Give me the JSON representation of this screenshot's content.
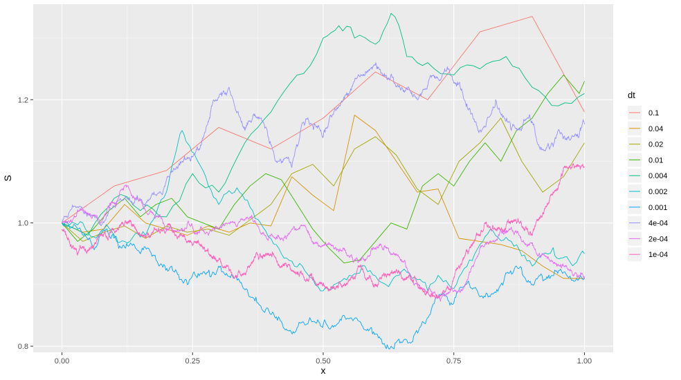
{
  "chart_data": {
    "type": "line",
    "title": "",
    "xlabel": "x",
    "ylabel": "S",
    "xlim": [
      -0.055,
      1.055
    ],
    "ylim": [
      0.79,
      1.355
    ],
    "x_ticks": [
      "0.00",
      "0.25",
      "0.50",
      "0.75",
      "1.00"
    ],
    "x_tick_values": [
      0,
      0.25,
      0.5,
      0.75,
      1.0
    ],
    "y_ticks": [
      "0.8",
      "1.0",
      "1.2"
    ],
    "y_tick_values": [
      0.8,
      1.0,
      1.2
    ],
    "grid": true,
    "legend": {
      "title": "dt",
      "placement": "right"
    },
    "series": [
      {
        "name": "0.1",
        "color": "#F8766D",
        "x": [
          0,
          0.1,
          0.2,
          0.3,
          0.4,
          0.5,
          0.6,
          0.7,
          0.8,
          0.9,
          1.0
        ],
        "y": [
          1.0,
          1.06,
          1.085,
          1.155,
          1.12,
          1.17,
          1.245,
          1.2,
          1.31,
          1.335,
          1.18
        ]
      },
      {
        "name": "0.04",
        "color": "#D89000",
        "x": [
          0,
          0.04,
          0.08,
          0.12,
          0.16,
          0.2,
          0.24,
          0.28,
          0.32,
          0.36,
          0.4,
          0.44,
          0.48,
          0.52,
          0.56,
          0.6,
          0.64,
          0.68,
          0.72,
          0.76,
          0.8,
          0.84,
          0.88,
          0.92,
          0.96,
          1.0
        ],
        "y": [
          1.0,
          0.985,
          0.99,
          1.03,
          1.0,
          0.99,
          0.98,
          0.995,
          0.985,
          1.0,
          0.995,
          1.075,
          1.045,
          1.02,
          1.175,
          1.15,
          1.1,
          1.05,
          1.055,
          0.975,
          0.97,
          0.965,
          0.955,
          0.93,
          0.91,
          0.91
        ]
      },
      {
        "name": "0.02",
        "color": "#A3A500",
        "x": [
          0,
          0.04,
          0.08,
          0.12,
          0.16,
          0.2,
          0.24,
          0.28,
          0.32,
          0.36,
          0.4,
          0.44,
          0.48,
          0.52,
          0.56,
          0.6,
          0.64,
          0.68,
          0.72,
          0.76,
          0.8,
          0.84,
          0.88,
          0.92,
          0.96,
          1.0
        ],
        "y": [
          1.0,
          0.97,
          0.985,
          0.995,
          0.975,
          0.995,
          0.985,
          0.99,
          0.98,
          1.005,
          1.03,
          1.08,
          1.095,
          1.06,
          1.12,
          1.14,
          1.11,
          1.055,
          1.03,
          1.1,
          1.13,
          1.17,
          1.1,
          1.05,
          1.075,
          1.13
        ]
      },
      {
        "name": "0.01",
        "color": "#39B600",
        "x": [
          0,
          0.03,
          0.06,
          0.09,
          0.12,
          0.15,
          0.18,
          0.21,
          0.24,
          0.27,
          0.3,
          0.33,
          0.36,
          0.39,
          0.42,
          0.45,
          0.48,
          0.51,
          0.54,
          0.57,
          0.6,
          0.63,
          0.66,
          0.69,
          0.72,
          0.75,
          0.78,
          0.81,
          0.84,
          0.87,
          0.9,
          0.93,
          0.96,
          0.99,
          1.0
        ],
        "y": [
          1.0,
          0.97,
          0.99,
          1.02,
          1.04,
          1.01,
          1.03,
          1.04,
          1.01,
          1.0,
          0.99,
          1.03,
          1.06,
          1.08,
          1.07,
          1.03,
          0.99,
          0.96,
          0.935,
          0.94,
          0.97,
          1.0,
          0.99,
          1.06,
          1.08,
          1.06,
          1.1,
          1.13,
          1.1,
          1.15,
          1.17,
          1.21,
          1.24,
          1.21,
          1.23
        ]
      },
      {
        "name": "0.004",
        "color": "#00BF7D",
        "x": [
          0,
          0.05,
          0.1,
          0.15,
          0.2,
          0.25,
          0.3,
          0.35,
          0.4,
          0.45,
          0.5,
          0.53,
          0.56,
          0.6,
          0.63,
          0.66,
          0.7,
          0.75,
          0.8,
          0.85,
          0.9,
          0.95,
          1.0
        ],
        "y": [
          1.0,
          0.98,
          1.04,
          1.02,
          1.01,
          1.08,
          1.05,
          1.13,
          1.18,
          1.24,
          1.3,
          1.32,
          1.3,
          1.29,
          1.34,
          1.27,
          1.26,
          1.24,
          1.25,
          1.27,
          1.22,
          1.19,
          1.21
        ]
      },
      {
        "name": "0.002",
        "color": "#00BFC4",
        "x": [
          0,
          0.04,
          0.08,
          0.12,
          0.16,
          0.2,
          0.23,
          0.26,
          0.3,
          0.34,
          0.38,
          0.42,
          0.46,
          0.5,
          0.54,
          0.58,
          0.62,
          0.66,
          0.7,
          0.74,
          0.78,
          0.82,
          0.86,
          0.9,
          0.94,
          0.97,
          1.0
        ],
        "y": [
          1.0,
          1.0,
          0.99,
          0.97,
          0.98,
          1.05,
          1.15,
          1.1,
          1.03,
          1.05,
          1.0,
          0.95,
          0.93,
          0.89,
          0.91,
          0.93,
          0.9,
          0.92,
          0.89,
          0.9,
          0.94,
          0.99,
          0.97,
          0.93,
          0.96,
          0.94,
          0.95
        ]
      },
      {
        "name": "0.001",
        "color": "#00A5FF",
        "x": [
          0,
          0.03,
          0.06,
          0.09,
          0.12,
          0.15,
          0.18,
          0.21,
          0.24,
          0.27,
          0.3,
          0.33,
          0.36,
          0.39,
          0.42,
          0.45,
          0.48,
          0.51,
          0.54,
          0.57,
          0.6,
          0.63,
          0.66,
          0.69,
          0.72,
          0.75,
          0.78,
          0.81,
          0.84,
          0.87,
          0.9,
          0.93,
          0.96,
          1.0
        ],
        "y": [
          1.0,
          0.99,
          0.96,
          0.98,
          0.96,
          0.95,
          0.94,
          0.93,
          0.9,
          0.92,
          0.93,
          0.91,
          0.88,
          0.86,
          0.84,
          0.83,
          0.84,
          0.83,
          0.85,
          0.84,
          0.82,
          0.8,
          0.81,
          0.84,
          0.88,
          0.87,
          0.9,
          0.88,
          0.9,
          0.93,
          0.9,
          0.91,
          0.92,
          0.91
        ]
      },
      {
        "name": "4e-04",
        "color": "#9590FF",
        "x": [
          0,
          0.04,
          0.08,
          0.12,
          0.16,
          0.2,
          0.23,
          0.26,
          0.29,
          0.32,
          0.35,
          0.38,
          0.41,
          0.44,
          0.47,
          0.5,
          0.53,
          0.56,
          0.59,
          0.62,
          0.65,
          0.68,
          0.71,
          0.74,
          0.77,
          0.8,
          0.83,
          0.86,
          0.89,
          0.92,
          0.95,
          0.98,
          1.0
        ],
        "y": [
          1.0,
          1.02,
          1.0,
          1.04,
          1.03,
          1.07,
          1.1,
          1.12,
          1.2,
          1.22,
          1.15,
          1.17,
          1.1,
          1.09,
          1.17,
          1.14,
          1.19,
          1.23,
          1.25,
          1.24,
          1.22,
          1.2,
          1.24,
          1.25,
          1.2,
          1.15,
          1.2,
          1.15,
          1.17,
          1.12,
          1.15,
          1.14,
          1.16
        ]
      },
      {
        "name": "2e-04",
        "color": "#E76BF3",
        "x": [
          0,
          0.04,
          0.08,
          0.12,
          0.16,
          0.2,
          0.24,
          0.28,
          0.32,
          0.36,
          0.4,
          0.44,
          0.48,
          0.52,
          0.56,
          0.6,
          0.64,
          0.68,
          0.72,
          0.76,
          0.8,
          0.84,
          0.88,
          0.92,
          0.96,
          1.0
        ],
        "y": [
          1.0,
          1.02,
          1.01,
          1.06,
          1.02,
          0.99,
          1.0,
          0.98,
          1.0,
          1.01,
          0.98,
          0.99,
          0.97,
          0.96,
          0.94,
          0.96,
          0.95,
          0.9,
          0.88,
          0.89,
          0.96,
          0.99,
          0.97,
          0.95,
          0.93,
          0.91
        ]
      },
      {
        "name": "1e-04",
        "color": "#FF62BC",
        "x": [
          0,
          0.03,
          0.06,
          0.09,
          0.12,
          0.15,
          0.18,
          0.21,
          0.24,
          0.27,
          0.3,
          0.33,
          0.36,
          0.39,
          0.42,
          0.45,
          0.48,
          0.51,
          0.54,
          0.57,
          0.6,
          0.63,
          0.66,
          0.69,
          0.72,
          0.75,
          0.78,
          0.81,
          0.84,
          0.87,
          0.9,
          0.93,
          0.96,
          1.0
        ],
        "y": [
          0.99,
          0.95,
          0.96,
          0.98,
          1.0,
          0.98,
          0.99,
          0.99,
          0.97,
          0.96,
          0.94,
          0.91,
          0.93,
          0.95,
          0.93,
          0.92,
          0.91,
          0.89,
          0.9,
          0.93,
          0.9,
          0.92,
          0.91,
          0.89,
          0.88,
          0.91,
          0.96,
          1.0,
          0.99,
          1.0,
          0.98,
          1.03,
          1.09,
          1.09
        ]
      }
    ]
  }
}
